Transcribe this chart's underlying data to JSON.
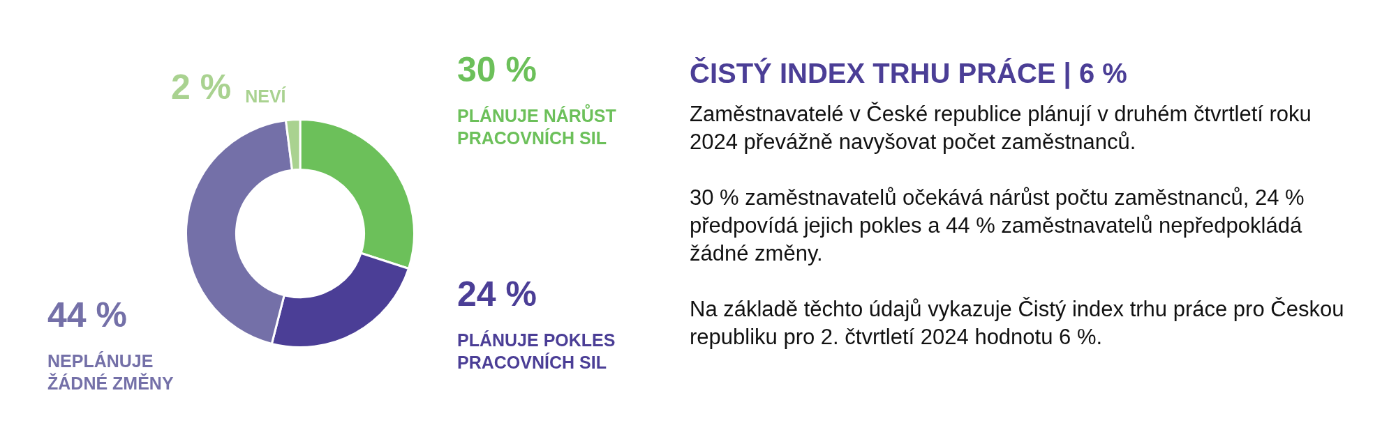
{
  "chart_data": [
    {
      "type": "donut",
      "categories": [
        "PLÁNUJE NÁRŮST PRACOVNÍCH SIL",
        "PLÁNUJE POKLES PRACOVNÍCH SIL",
        "NEPLÁNUJE ŽÁDNÉ ZMĚNY",
        "NEVÍ"
      ],
      "values": [
        30,
        24,
        44,
        2
      ],
      "colors": [
        "#6cc05a",
        "#4b3e96",
        "#7470a8",
        "#a9d290"
      ],
      "value_labels": [
        "30 %",
        "24 %",
        "44 %",
        "2 %"
      ]
    },
    {
      "type": "other",
      "title": "ČISTÝ INDEX TRHU PRÁCE | 6 %",
      "annotations": [
        "Zaměstnavatelé v České republice plánují v druhém čtvrtletí roku 2024 převážně navyšovat počet zaměstnanců.",
        "30 % zaměstnavatelů očekává nárůst počtu zaměstnanců, 24 % předpovídá jejich pokles a 44 % zaměstnavatelů nepředpokládá žádné změny.",
        "Na základě těchto údajů vykazuje Čistý index trhu práce pro Českou republiku pro 2. čtvrtletí 2024 hodnotu 6 %."
      ]
    }
  ]
}
